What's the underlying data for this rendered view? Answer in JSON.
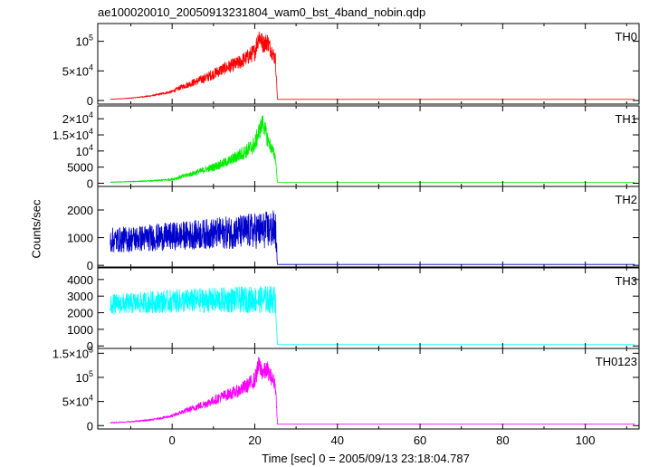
{
  "title": "ae100020010_20050913231804_wam0_bst_4band_nobin.qdp",
  "x_label": "Time [sec] 0 = 2005/09/13 23:18:04.787",
  "y_label": "Counts/sec",
  "chart_data": {
    "type": "line",
    "xlim": [
      -18,
      113
    ],
    "x_ticks": [
      0,
      20,
      40,
      60,
      80,
      100
    ],
    "x_tick_labels": [
      "0",
      "20",
      "40",
      "60",
      "80",
      "100"
    ],
    "grid": false,
    "shared_x_axis": true,
    "panels": [
      {
        "name": "TH0",
        "color": "#ff0000",
        "ylim": [
          -6000,
          130000
        ],
        "y_ticks": [
          0,
          50000,
          100000
        ],
        "y_tick_labels": [
          {
            "t": "0"
          },
          {
            "t": "5×10",
            "sup": "4"
          },
          {
            "t": "10",
            "sup": "5"
          }
        ],
        "x": [
          -15,
          -10,
          -5,
          0,
          2,
          5,
          8,
          10,
          12,
          14,
          16,
          18,
          20,
          21,
          22,
          23,
          24,
          25,
          25.5,
          30,
          50,
          70,
          90,
          112
        ],
        "y": [
          2000,
          4000,
          8000,
          15000,
          22000,
          30000,
          38000,
          45000,
          52000,
          58000,
          63000,
          72000,
          82000,
          110000,
          95000,
          100000,
          85000,
          70000,
          2000,
          2000,
          2000,
          2000,
          2000,
          2000
        ],
        "noise": [
          300,
          600,
          1200,
          2500,
          4000,
          6000,
          8000,
          9000,
          10000,
          11000,
          12000,
          13000,
          15000,
          18000,
          15000,
          16000,
          14000,
          12000,
          0,
          0,
          0,
          0,
          0,
          0
        ]
      },
      {
        "name": "TH1",
        "color": "#00ee00",
        "ylim": [
          -1000,
          24000
        ],
        "y_ticks": [
          0,
          5000,
          10000,
          15000,
          20000
        ],
        "y_tick_labels": [
          {
            "t": "0"
          },
          {
            "t": "5000"
          },
          {
            "t": "10",
            "sup": "4"
          },
          {
            "t": "1.5×10",
            "sup": "4"
          },
          {
            "t": "2×10",
            "sup": "4"
          }
        ],
        "x": [
          -15,
          -10,
          -5,
          0,
          5,
          10,
          14,
          16,
          18,
          20,
          21,
          22,
          23,
          24,
          25,
          25.5,
          30,
          50,
          70,
          90,
          112
        ],
        "y": [
          300,
          500,
          700,
          1200,
          3000,
          5000,
          7000,
          8500,
          10000,
          12000,
          16000,
          19000,
          14000,
          11000,
          8000,
          300,
          300,
          300,
          300,
          300,
          300
        ],
        "noise": [
          100,
          150,
          200,
          400,
          800,
          1200,
          1600,
          2000,
          2200,
          2800,
          3000,
          2800,
          2500,
          2000,
          1500,
          0,
          0,
          0,
          0,
          0,
          0
        ]
      },
      {
        "name": "TH2",
        "color": "#0000cc",
        "ylim": [
          -60,
          2850
        ],
        "y_ticks": [
          0,
          1000,
          2000
        ],
        "y_tick_labels": [
          {
            "t": "0"
          },
          {
            "t": "1000"
          },
          {
            "t": "2000"
          }
        ],
        "x": [
          -15,
          0,
          10,
          20,
          25,
          25.5,
          30,
          50,
          70,
          90,
          112
        ],
        "y": [
          900,
          1050,
          1150,
          1250,
          1300,
          30,
          30,
          30,
          30,
          30,
          30
        ],
        "noise": [
          450,
          500,
          550,
          650,
          700,
          0,
          0,
          0,
          0,
          0,
          0
        ]
      },
      {
        "name": "TH3",
        "color": "#00ffff",
        "ylim": [
          -150,
          4700
        ],
        "y_ticks": [
          0,
          1000,
          2000,
          3000,
          4000
        ],
        "y_tick_labels": [
          {
            "t": "0"
          },
          {
            "t": "1000"
          },
          {
            "t": "2000"
          },
          {
            "t": "3000"
          },
          {
            "t": "4000"
          }
        ],
        "x": [
          -15,
          0,
          10,
          20,
          25,
          25.5,
          30,
          50,
          70,
          90,
          112
        ],
        "y": [
          2500,
          2700,
          2750,
          2800,
          2800,
          80,
          80,
          80,
          80,
          80,
          80
        ],
        "noise": [
          600,
          700,
          750,
          800,
          850,
          0,
          0,
          0,
          0,
          0,
          0
        ]
      },
      {
        "name": "TH0123",
        "color": "#ff00ff",
        "ylim": [
          -7000,
          160000
        ],
        "y_ticks": [
          0,
          50000,
          100000,
          150000
        ],
        "y_tick_labels": [
          {
            "t": "0"
          },
          {
            "t": "5×10",
            "sup": "4"
          },
          {
            "t": "10",
            "sup": "5"
          },
          {
            "t": "1.5×10",
            "sup": "5"
          }
        ],
        "x": [
          -15,
          -10,
          -5,
          0,
          2,
          5,
          8,
          10,
          12,
          14,
          16,
          18,
          20,
          21,
          22,
          23,
          24,
          25,
          25.5,
          30,
          50,
          70,
          90,
          112
        ],
        "y": [
          6000,
          8000,
          12000,
          20000,
          27000,
          36000,
          45000,
          52000,
          60000,
          66000,
          72000,
          82000,
          95000,
          125000,
          110000,
          115000,
          100000,
          85000,
          3000,
          3000,
          3000,
          3000,
          3000,
          3000
        ],
        "noise": [
          800,
          1200,
          1800,
          3000,
          4500,
          6500,
          8500,
          9500,
          11000,
          12000,
          13000,
          15000,
          17000,
          21000,
          18000,
          19000,
          16000,
          14000,
          0,
          0,
          0,
          0,
          0,
          0
        ]
      }
    ]
  }
}
